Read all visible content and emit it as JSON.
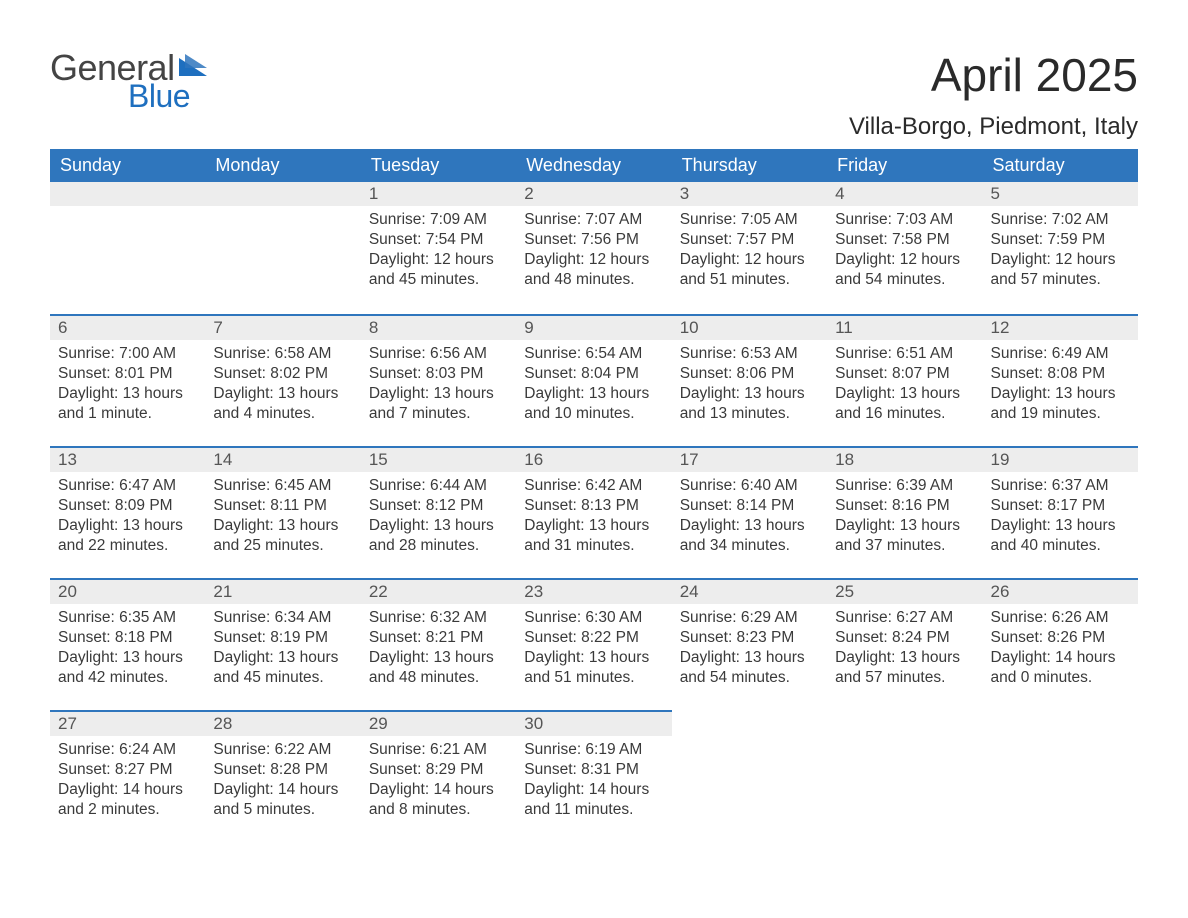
{
  "logo": {
    "text_general": "General",
    "text_blue": "Blue"
  },
  "title": "April 2025",
  "subtitle": "Villa-Borgo, Piedmont, Italy",
  "colors": {
    "header_bg": "#2f76bd",
    "header_text": "#ffffff",
    "daynum_bg": "#ededed",
    "row_border": "#2f76bd",
    "body_text": "#3a3a3a",
    "page_bg": "#ffffff",
    "logo_general": "#444444",
    "logo_blue": "#1e6fbf"
  },
  "weekdays": [
    "Sunday",
    "Monday",
    "Tuesday",
    "Wednesday",
    "Thursday",
    "Friday",
    "Saturday"
  ],
  "days": {
    "1": {
      "sunrise": "7:09 AM",
      "sunset": "7:54 PM",
      "daylight": "12 hours and 45 minutes."
    },
    "2": {
      "sunrise": "7:07 AM",
      "sunset": "7:56 PM",
      "daylight": "12 hours and 48 minutes."
    },
    "3": {
      "sunrise": "7:05 AM",
      "sunset": "7:57 PM",
      "daylight": "12 hours and 51 minutes."
    },
    "4": {
      "sunrise": "7:03 AM",
      "sunset": "7:58 PM",
      "daylight": "12 hours and 54 minutes."
    },
    "5": {
      "sunrise": "7:02 AM",
      "sunset": "7:59 PM",
      "daylight": "12 hours and 57 minutes."
    },
    "6": {
      "sunrise": "7:00 AM",
      "sunset": "8:01 PM",
      "daylight": "13 hours and 1 minute."
    },
    "7": {
      "sunrise": "6:58 AM",
      "sunset": "8:02 PM",
      "daylight": "13 hours and 4 minutes."
    },
    "8": {
      "sunrise": "6:56 AM",
      "sunset": "8:03 PM",
      "daylight": "13 hours and 7 minutes."
    },
    "9": {
      "sunrise": "6:54 AM",
      "sunset": "8:04 PM",
      "daylight": "13 hours and 10 minutes."
    },
    "10": {
      "sunrise": "6:53 AM",
      "sunset": "8:06 PM",
      "daylight": "13 hours and 13 minutes."
    },
    "11": {
      "sunrise": "6:51 AM",
      "sunset": "8:07 PM",
      "daylight": "13 hours and 16 minutes."
    },
    "12": {
      "sunrise": "6:49 AM",
      "sunset": "8:08 PM",
      "daylight": "13 hours and 19 minutes."
    },
    "13": {
      "sunrise": "6:47 AM",
      "sunset": "8:09 PM",
      "daylight": "13 hours and 22 minutes."
    },
    "14": {
      "sunrise": "6:45 AM",
      "sunset": "8:11 PM",
      "daylight": "13 hours and 25 minutes."
    },
    "15": {
      "sunrise": "6:44 AM",
      "sunset": "8:12 PM",
      "daylight": "13 hours and 28 minutes."
    },
    "16": {
      "sunrise": "6:42 AM",
      "sunset": "8:13 PM",
      "daylight": "13 hours and 31 minutes."
    },
    "17": {
      "sunrise": "6:40 AM",
      "sunset": "8:14 PM",
      "daylight": "13 hours and 34 minutes."
    },
    "18": {
      "sunrise": "6:39 AM",
      "sunset": "8:16 PM",
      "daylight": "13 hours and 37 minutes."
    },
    "19": {
      "sunrise": "6:37 AM",
      "sunset": "8:17 PM",
      "daylight": "13 hours and 40 minutes."
    },
    "20": {
      "sunrise": "6:35 AM",
      "sunset": "8:18 PM",
      "daylight": "13 hours and 42 minutes."
    },
    "21": {
      "sunrise": "6:34 AM",
      "sunset": "8:19 PM",
      "daylight": "13 hours and 45 minutes."
    },
    "22": {
      "sunrise": "6:32 AM",
      "sunset": "8:21 PM",
      "daylight": "13 hours and 48 minutes."
    },
    "23": {
      "sunrise": "6:30 AM",
      "sunset": "8:22 PM",
      "daylight": "13 hours and 51 minutes."
    },
    "24": {
      "sunrise": "6:29 AM",
      "sunset": "8:23 PM",
      "daylight": "13 hours and 54 minutes."
    },
    "25": {
      "sunrise": "6:27 AM",
      "sunset": "8:24 PM",
      "daylight": "13 hours and 57 minutes."
    },
    "26": {
      "sunrise": "6:26 AM",
      "sunset": "8:26 PM",
      "daylight": "14 hours and 0 minutes."
    },
    "27": {
      "sunrise": "6:24 AM",
      "sunset": "8:27 PM",
      "daylight": "14 hours and 2 minutes."
    },
    "28": {
      "sunrise": "6:22 AM",
      "sunset": "8:28 PM",
      "daylight": "14 hours and 5 minutes."
    },
    "29": {
      "sunrise": "6:21 AM",
      "sunset": "8:29 PM",
      "daylight": "14 hours and 8 minutes."
    },
    "30": {
      "sunrise": "6:19 AM",
      "sunset": "8:31 PM",
      "daylight": "14 hours and 11 minutes."
    }
  },
  "labels": {
    "sunrise": "Sunrise: ",
    "sunset": "Sunset: ",
    "daylight": "Daylight: "
  },
  "grid": [
    [
      null,
      null,
      "1",
      "2",
      "3",
      "4",
      "5"
    ],
    [
      "6",
      "7",
      "8",
      "9",
      "10",
      "11",
      "12"
    ],
    [
      "13",
      "14",
      "15",
      "16",
      "17",
      "18",
      "19"
    ],
    [
      "20",
      "21",
      "22",
      "23",
      "24",
      "25",
      "26"
    ],
    [
      "27",
      "28",
      "29",
      "30",
      null,
      null,
      null
    ]
  ]
}
